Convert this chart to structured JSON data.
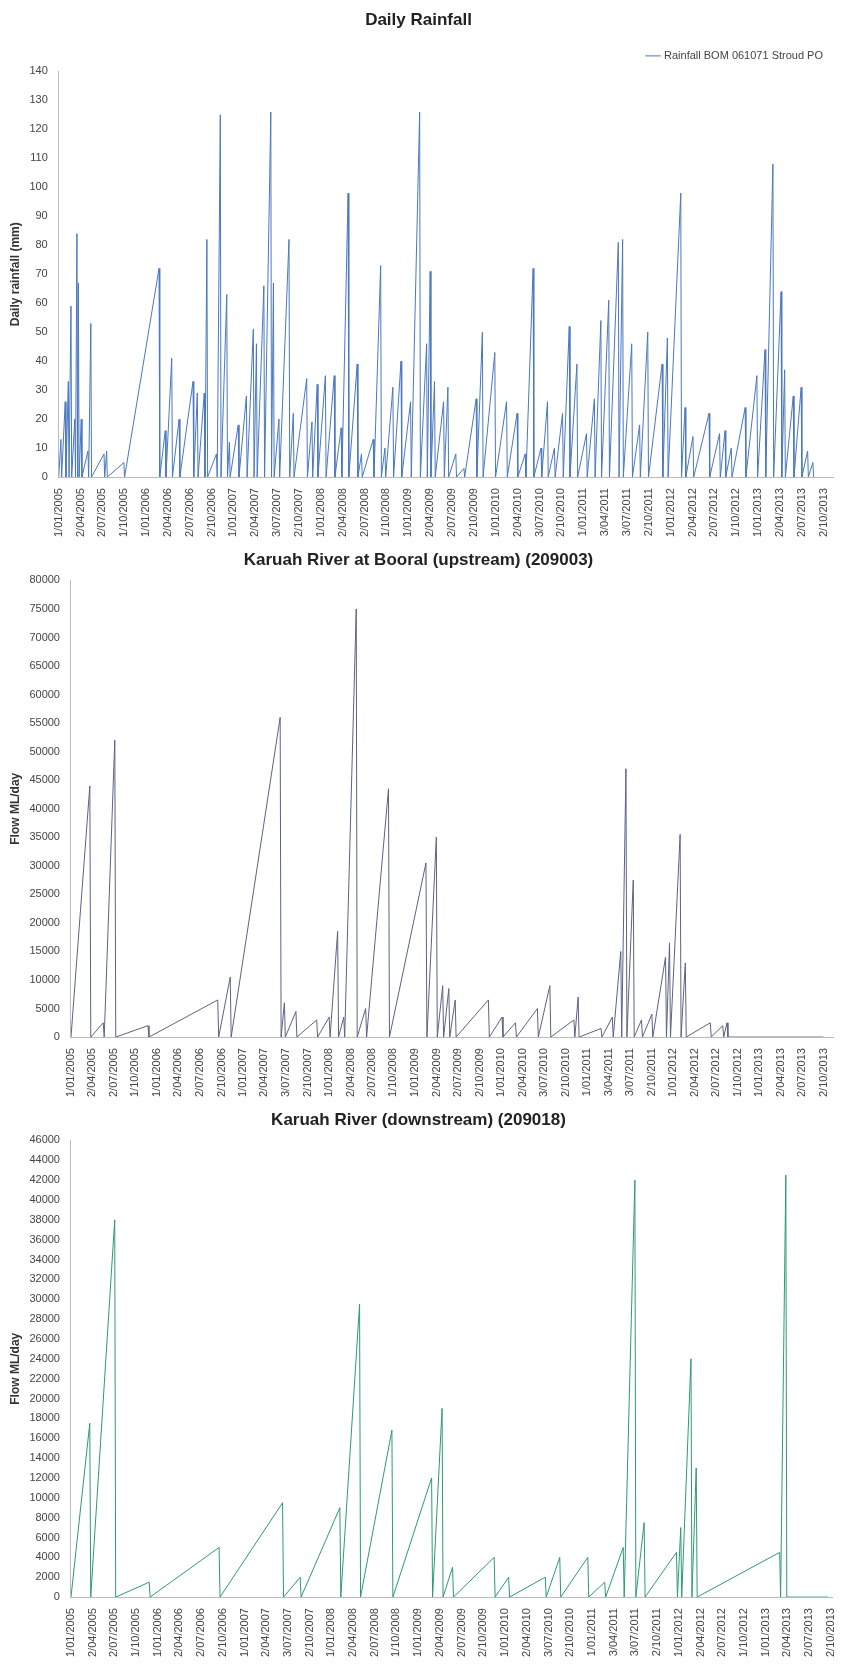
{
  "chart_data": [
    {
      "type": "line",
      "title": "Daily Rainfall",
      "ylabel": "Daily rainfall (mm)",
      "legend": "top right",
      "marker": "none",
      "xlim": [
        "2005-01-01",
        "2013-11-10"
      ],
      "xticks": [
        {
          "value": "2005-01-01",
          "label": "1/01/2005"
        },
        {
          "value": "2005-04-02",
          "label": "2/04/2005"
        },
        {
          "value": "2005-07-02",
          "label": "2/07/2005"
        },
        {
          "value": "2005-10-01",
          "label": "1/10/2005"
        },
        {
          "value": "2006-01-01",
          "label": "1/01/2006"
        },
        {
          "value": "2006-04-02",
          "label": "2/04/2006"
        },
        {
          "value": "2006-07-02",
          "label": "2/07/2006"
        },
        {
          "value": "2006-10-02",
          "label": "2/10/2006"
        },
        {
          "value": "2007-01-01",
          "label": "1/01/2007"
        },
        {
          "value": "2007-04-02",
          "label": "2/04/2007"
        },
        {
          "value": "2007-07-03",
          "label": "3/07/2007"
        },
        {
          "value": "2007-10-02",
          "label": "2/10/2007"
        },
        {
          "value": "2008-01-01",
          "label": "1/01/2008"
        },
        {
          "value": "2008-04-02",
          "label": "2/04/2008"
        },
        {
          "value": "2008-07-02",
          "label": "2/07/2008"
        },
        {
          "value": "2008-10-01",
          "label": "1/10/2008"
        },
        {
          "value": "2009-01-01",
          "label": "1/01/2009"
        },
        {
          "value": "2009-04-02",
          "label": "2/04/2009"
        },
        {
          "value": "2009-07-02",
          "label": "2/07/2009"
        },
        {
          "value": "2009-10-02",
          "label": "2/10/2009"
        },
        {
          "value": "2010-01-01",
          "label": "1/01/2010"
        },
        {
          "value": "2010-04-02",
          "label": "2/04/2010"
        },
        {
          "value": "2010-07-03",
          "label": "3/07/2010"
        },
        {
          "value": "2010-10-02",
          "label": "2/10/2010"
        },
        {
          "value": "2011-01-01",
          "label": "1/01/2011"
        },
        {
          "value": "2011-04-03",
          "label": "3/04/2011"
        },
        {
          "value": "2011-07-03",
          "label": "3/07/2011"
        },
        {
          "value": "2011-10-02",
          "label": "2/10/2011"
        },
        {
          "value": "2012-01-01",
          "label": "1/01/2012"
        },
        {
          "value": "2012-04-02",
          "label": "2/04/2012"
        },
        {
          "value": "2012-07-02",
          "label": "2/07/2012"
        },
        {
          "value": "2012-10-01",
          "label": "1/10/2012"
        },
        {
          "value": "2013-01-01",
          "label": "1/01/2013"
        },
        {
          "value": "2013-04-02",
          "label": "2/04/2013"
        },
        {
          "value": "2013-07-02",
          "label": "2/07/2013"
        },
        {
          "value": "2013-10-02",
          "label": "2/10/2013"
        }
      ],
      "ylim": [
        0,
        140
      ],
      "yticks": [
        0,
        10,
        20,
        30,
        40,
        50,
        60,
        70,
        80,
        90,
        100,
        110,
        120,
        130,
        140
      ],
      "series": [
        {
          "name": "Rainfall BOM 061071 Stroud PO",
          "color": "#4a78c0",
          "x": [
            "2005-01-01",
            "2005-01-10",
            "2005-01-13",
            "2005-01-28",
            "2005-01-31",
            "2005-02-10",
            "2005-02-13",
            "2005-02-21",
            "2005-02-24",
            "2005-03-09",
            "2005-03-12",
            "2005-03-18",
            "2005-03-21",
            "2005-03-24",
            "2005-03-27",
            "2005-04-05",
            "2005-04-08",
            "2005-05-03",
            "2005-05-06",
            "2005-05-15",
            "2005-05-18",
            "2005-07-09",
            "2005-07-12",
            "2005-07-20",
            "2005-07-23",
            "2005-09-30",
            "2005-10-03",
            "2006-02-24",
            "2006-02-27",
            "2006-03-22",
            "2006-03-25",
            "2006-04-18",
            "2006-04-21",
            "2006-05-19",
            "2006-05-22",
            "2006-07-16",
            "2006-07-19",
            "2006-08-03",
            "2006-08-06",
            "2006-09-01",
            "2006-09-04",
            "2006-09-12",
            "2006-09-15",
            "2006-10-22",
            "2006-10-25",
            "2006-11-07",
            "2006-11-10",
            "2006-12-04",
            "2006-12-07",
            "2006-12-15",
            "2006-12-18",
            "2007-01-21",
            "2007-01-24",
            "2007-02-24",
            "2007-02-27",
            "2007-03-25",
            "2007-03-28",
            "2007-04-07",
            "2007-04-10",
            "2007-05-08",
            "2007-05-11",
            "2007-06-06",
            "2007-06-09",
            "2007-06-17",
            "2007-06-20",
            "2007-07-10",
            "2007-07-13",
            "2007-08-21",
            "2007-08-24",
            "2007-09-08",
            "2007-09-11",
            "2007-11-03",
            "2007-11-06",
            "2007-11-25",
            "2007-11-28",
            "2007-12-17",
            "2007-12-20",
            "2008-01-20",
            "2008-01-23",
            "2008-02-26",
            "2008-02-29",
            "2008-03-26",
            "2008-03-29",
            "2008-04-24",
            "2008-04-27",
            "2008-06-01",
            "2008-06-04",
            "2008-06-19",
            "2008-06-22",
            "2008-08-07",
            "2008-08-10",
            "2008-09-07",
            "2008-09-10",
            "2008-09-25",
            "2008-09-28",
            "2008-10-28",
            "2008-10-31",
            "2008-12-01",
            "2008-12-04",
            "2009-01-10",
            "2009-01-13",
            "2009-02-17",
            "2009-02-20",
            "2009-03-18",
            "2009-03-21",
            "2009-04-02",
            "2009-04-05",
            "2009-04-20",
            "2009-04-23",
            "2009-05-28",
            "2009-05-31",
            "2009-06-15",
            "2009-06-18",
            "2009-07-18",
            "2009-07-21",
            "2009-08-21",
            "2009-08-24",
            "2009-10-11",
            "2009-10-14",
            "2009-11-06",
            "2009-11-09",
            "2009-12-28",
            "2009-12-31",
            "2010-02-15",
            "2010-02-18",
            "2010-03-31",
            "2010-04-03",
            "2010-05-04",
            "2010-05-07",
            "2010-06-06",
            "2010-06-09",
            "2010-07-09",
            "2010-07-12",
            "2010-08-05",
            "2010-08-08",
            "2010-09-03",
            "2010-09-06",
            "2010-10-07",
            "2010-10-10",
            "2010-11-04",
            "2010-11-07",
            "2010-12-06",
            "2010-12-09",
            "2011-01-15",
            "2011-01-18",
            "2011-02-17",
            "2011-02-20",
            "2011-03-16",
            "2011-03-19",
            "2011-04-18",
            "2011-04-21",
            "2011-05-28",
            "2011-05-31",
            "2011-06-15",
            "2011-06-18",
            "2011-07-23",
            "2011-07-26",
            "2011-08-25",
            "2011-08-28",
            "2011-09-28",
            "2011-10-01",
            "2011-11-27",
            "2011-11-30",
            "2011-12-19",
            "2011-12-22",
            "2012-02-13",
            "2012-02-16",
            "2012-03-02",
            "2012-03-05",
            "2012-04-04",
            "2012-04-07",
            "2012-06-10",
            "2012-06-13",
            "2012-07-24",
            "2012-07-27",
            "2012-08-16",
            "2012-08-19",
            "2012-09-11",
            "2012-09-14",
            "2012-11-08",
            "2012-11-11",
            "2012-12-27",
            "2012-12-30",
            "2013-01-30",
            "2013-02-02",
            "2013-03-04",
            "2013-03-07",
            "2013-04-07",
            "2013-04-10",
            "2013-04-22",
            "2013-04-25",
            "2013-05-28",
            "2013-05-31",
            "2013-06-30",
            "2013-07-03",
            "2013-07-27",
            "2013-07-30",
            "2013-08-18",
            "2013-08-21"
          ],
          "values": [
            0,
            13,
            0,
            26,
            0,
            33,
            0,
            59,
            0,
            20,
            0,
            84,
            0,
            67,
            0,
            20,
            0,
            9,
            0,
            53,
            0,
            8,
            0,
            9,
            0,
            5,
            0,
            72,
            0,
            16,
            0,
            41,
            0,
            20,
            0,
            33,
            0,
            29,
            0,
            29,
            0,
            82,
            0,
            8,
            0,
            125,
            0,
            63,
            0,
            12,
            0,
            18,
            0,
            28,
            0,
            51,
            0,
            46,
            0,
            66,
            0,
            126,
            0,
            67,
            0,
            20,
            0,
            82,
            0,
            22,
            0,
            34,
            0,
            19,
            0,
            32,
            0,
            35,
            0,
            35,
            0,
            17,
            0,
            98,
            0,
            39,
            0,
            8,
            0,
            13,
            0,
            73,
            0,
            10,
            0,
            31,
            0,
            40,
            0,
            26,
            0,
            126,
            0,
            46,
            0,
            71,
            0,
            33,
            0,
            26,
            0,
            31,
            0,
            8,
            0,
            3,
            0,
            27,
            0,
            50,
            0,
            43,
            0,
            26,
            0,
            22,
            0,
            8,
            0,
            72,
            0,
            10,
            0,
            26,
            0,
            10,
            0,
            22,
            0,
            52,
            0,
            39,
            0,
            15,
            0,
            27,
            0,
            54,
            0,
            61,
            0,
            81,
            0,
            82,
            0,
            46,
            0,
            18,
            0,
            50,
            0,
            39,
            0,
            48,
            0,
            98,
            0,
            24,
            0,
            14,
            0,
            22,
            0,
            15,
            0,
            16,
            0,
            10,
            0,
            24,
            0,
            35,
            0,
            44,
            0,
            108,
            0,
            64,
            0,
            37,
            0,
            28,
            0,
            31,
            0,
            9,
            0,
            5,
            0
          ]
        }
      ]
    },
    {
      "type": "line",
      "title": "Karuah River at Booral (upstream) (209003)",
      "ylabel": "Flow ML/day",
      "marker": "none",
      "xlim": [
        "2005-01-01",
        "2013-11-10"
      ],
      "xticks": [
        {
          "value": "2005-01-01",
          "label": "1/01/2005"
        },
        {
          "value": "2005-04-02",
          "label": "2/04/2005"
        },
        {
          "value": "2005-07-02",
          "label": "2/07/2005"
        },
        {
          "value": "2005-10-01",
          "label": "1/10/2005"
        },
        {
          "value": "2006-01-01",
          "label": "1/01/2006"
        },
        {
          "value": "2006-04-02",
          "label": "2/04/2006"
        },
        {
          "value": "2006-07-02",
          "label": "2/07/2006"
        },
        {
          "value": "2006-10-02",
          "label": "2/10/2006"
        },
        {
          "value": "2007-01-01",
          "label": "1/01/2007"
        },
        {
          "value": "2007-04-02",
          "label": "2/04/2007"
        },
        {
          "value": "2007-07-03",
          "label": "3/07/2007"
        },
        {
          "value": "2007-10-02",
          "label": "2/10/2007"
        },
        {
          "value": "2008-01-01",
          "label": "1/01/2008"
        },
        {
          "value": "2008-04-02",
          "label": "2/04/2008"
        },
        {
          "value": "2008-07-02",
          "label": "2/07/2008"
        },
        {
          "value": "2008-10-01",
          "label": "1/10/2008"
        },
        {
          "value": "2009-01-01",
          "label": "1/01/2009"
        },
        {
          "value": "2009-04-02",
          "label": "2/04/2009"
        },
        {
          "value": "2009-07-02",
          "label": "2/07/2009"
        },
        {
          "value": "2009-10-02",
          "label": "2/10/2009"
        },
        {
          "value": "2010-01-01",
          "label": "1/01/2010"
        },
        {
          "value": "2010-04-02",
          "label": "2/04/2010"
        },
        {
          "value": "2010-07-03",
          "label": "3/07/2010"
        },
        {
          "value": "2010-10-02",
          "label": "2/10/2010"
        },
        {
          "value": "2011-01-01",
          "label": "1/01/2011"
        },
        {
          "value": "2011-04-03",
          "label": "3/04/2011"
        },
        {
          "value": "2011-07-03",
          "label": "3/07/2011"
        },
        {
          "value": "2011-10-02",
          "label": "2/10/2011"
        },
        {
          "value": "2012-01-01",
          "label": "1/01/2012"
        },
        {
          "value": "2012-04-02",
          "label": "2/04/2012"
        },
        {
          "value": "2012-07-02",
          "label": "2/07/2012"
        },
        {
          "value": "2012-10-01",
          "label": "1/10/2012"
        },
        {
          "value": "2013-01-01",
          "label": "1/01/2013"
        },
        {
          "value": "2013-04-02",
          "label": "2/04/2013"
        },
        {
          "value": "2013-07-02",
          "label": "2/07/2013"
        },
        {
          "value": "2013-10-02",
          "label": "2/10/2013"
        }
      ],
      "ylim": [
        0,
        80000
      ],
      "yticks": [
        0,
        5000,
        10000,
        15000,
        20000,
        25000,
        30000,
        35000,
        40000,
        45000,
        50000,
        55000,
        60000,
        65000,
        70000,
        75000,
        80000
      ],
      "series": [
        {
          "color": "#5c6382",
          "x": [
            "2005-01-01",
            "2005-03-22",
            "2005-03-26",
            "2005-05-18",
            "2005-05-22",
            "2005-07-06",
            "2005-07-10",
            "2005-11-24",
            "2005-11-28",
            "2006-09-16",
            "2006-09-20",
            "2006-11-08",
            "2006-11-12",
            "2007-06-08",
            "2007-06-12",
            "2007-06-26",
            "2007-06-30",
            "2007-08-14",
            "2007-08-18",
            "2007-11-10",
            "2007-11-14",
            "2008-01-02",
            "2008-01-06",
            "2008-02-07",
            "2008-02-11",
            "2008-03-04",
            "2008-03-08",
            "2008-04-26",
            "2008-04-30",
            "2008-06-05",
            "2008-06-09",
            "2008-09-10",
            "2008-09-14",
            "2009-02-16",
            "2009-02-20",
            "2009-04-01",
            "2009-04-05",
            "2009-04-28",
            "2009-05-02",
            "2009-05-24",
            "2009-05-28",
            "2009-06-20",
            "2009-06-24",
            "2009-11-08",
            "2009-11-12",
            "2010-01-05",
            "2010-01-09",
            "2010-03-03",
            "2010-03-07",
            "2010-06-04",
            "2010-06-08",
            "2010-07-27",
            "2010-07-31",
            "2010-11-06",
            "2010-11-10",
            "2010-11-24",
            "2010-11-28",
            "2011-03-01",
            "2011-03-05",
            "2011-04-18",
            "2011-04-22",
            "2011-05-24",
            "2011-05-28",
            "2011-06-15",
            "2011-06-19",
            "2011-07-16",
            "2011-07-20",
            "2011-08-20",
            "2011-08-24",
            "2011-10-03",
            "2011-10-07",
            "2011-11-30",
            "2011-12-04",
            "2011-12-17",
            "2011-12-21",
            "2012-01-31",
            "2012-02-04",
            "2012-02-22",
            "2012-02-26",
            "2012-06-07",
            "2012-06-11",
            "2012-07-30",
            "2012-08-03",
            "2012-08-17",
            "2012-08-21",
            "2013-09-30"
          ],
          "values": [
            0,
            44000,
            0,
            2500,
            0,
            52000,
            0,
            2000,
            0,
            6500,
            0,
            10500,
            0,
            56000,
            0,
            6000,
            0,
            4500,
            0,
            3000,
            0,
            3500,
            0,
            18500,
            0,
            3500,
            0,
            75000,
            0,
            5000,
            0,
            43500,
            0,
            30500,
            0,
            35000,
            0,
            9000,
            0,
            8500,
            0,
            6500,
            0,
            6500,
            0,
            3500,
            0,
            2500,
            0,
            5000,
            0,
            9000,
            0,
            3000,
            0,
            7000,
            0,
            1500,
            0,
            3500,
            0,
            15000,
            0,
            47000,
            0,
            27500,
            0,
            3000,
            0,
            4000,
            0,
            14000,
            0,
            16500,
            0,
            35500,
            0,
            13000,
            0,
            2500,
            0,
            2000,
            0,
            2500,
            0,
            0
          ]
        }
      ]
    },
    {
      "type": "line",
      "title": "Karuah River (downstream) (209018)",
      "ylabel": "Flow ML/day",
      "marker": "none",
      "xlim": [
        "2005-01-01",
        "2013-10-10"
      ],
      "xticks": [
        {
          "value": "2005-01-01",
          "label": "1/01/2005"
        },
        {
          "value": "2005-04-02",
          "label": "2/04/2005"
        },
        {
          "value": "2005-07-02",
          "label": "2/07/2005"
        },
        {
          "value": "2005-10-01",
          "label": "1/10/2005"
        },
        {
          "value": "2006-01-01",
          "label": "1/01/2006"
        },
        {
          "value": "2006-04-02",
          "label": "2/04/2006"
        },
        {
          "value": "2006-07-02",
          "label": "2/07/2006"
        },
        {
          "value": "2006-10-02",
          "label": "2/10/2006"
        },
        {
          "value": "2007-01-01",
          "label": "1/01/2007"
        },
        {
          "value": "2007-04-02",
          "label": "2/04/2007"
        },
        {
          "value": "2007-07-03",
          "label": "3/07/2007"
        },
        {
          "value": "2007-10-02",
          "label": "2/10/2007"
        },
        {
          "value": "2008-01-01",
          "label": "1/01/2008"
        },
        {
          "value": "2008-04-02",
          "label": "2/04/2008"
        },
        {
          "value": "2008-07-02",
          "label": "2/07/2008"
        },
        {
          "value": "2008-10-01",
          "label": "1/10/2008"
        },
        {
          "value": "2009-01-01",
          "label": "1/01/2009"
        },
        {
          "value": "2009-04-02",
          "label": "2/04/2009"
        },
        {
          "value": "2009-07-02",
          "label": "2/07/2009"
        },
        {
          "value": "2009-10-02",
          "label": "2/10/2009"
        },
        {
          "value": "2010-01-01",
          "label": "1/01/2010"
        },
        {
          "value": "2010-04-02",
          "label": "2/04/2010"
        },
        {
          "value": "2010-07-03",
          "label": "3/07/2010"
        },
        {
          "value": "2010-10-02",
          "label": "2/10/2010"
        },
        {
          "value": "2011-01-01",
          "label": "1/01/2011"
        },
        {
          "value": "2011-04-03",
          "label": "3/04/2011"
        },
        {
          "value": "2011-07-03",
          "label": "3/07/2011"
        },
        {
          "value": "2011-10-02",
          "label": "2/10/2011"
        },
        {
          "value": "2012-01-01",
          "label": "1/01/2012"
        },
        {
          "value": "2012-04-02",
          "label": "2/04/2012"
        },
        {
          "value": "2012-07-02",
          "label": "2/07/2012"
        },
        {
          "value": "2012-10-01",
          "label": "1/10/2012"
        },
        {
          "value": "2013-01-01",
          "label": "1/01/2013"
        },
        {
          "value": "2013-04-02",
          "label": "2/04/2013"
        },
        {
          "value": "2013-07-02",
          "label": "2/07/2013"
        },
        {
          "value": "2013-10-02",
          "label": "2/10/2013"
        }
      ],
      "ylim": [
        0,
        46000
      ],
      "yticks": [
        0,
        2000,
        4000,
        6000,
        8000,
        10000,
        12000,
        14000,
        16000,
        18000,
        20000,
        22000,
        24000,
        26000,
        28000,
        30000,
        32000,
        34000,
        36000,
        38000,
        40000,
        42000,
        44000,
        46000
      ],
      "series": [
        {
          "color": "#2f9a72",
          "x": [
            "2005-01-01",
            "2005-03-21",
            "2005-03-25",
            "2005-07-04",
            "2005-07-08",
            "2005-11-26",
            "2005-11-30",
            "2006-09-16",
            "2006-09-20",
            "2007-06-10",
            "2007-06-14",
            "2007-08-23",
            "2007-08-27",
            "2008-02-06",
            "2008-02-10",
            "2008-04-29",
            "2008-05-03",
            "2008-09-12",
            "2008-09-16",
            "2009-02-26",
            "2009-03-02",
            "2009-04-11",
            "2009-04-15",
            "2009-05-25",
            "2009-05-29",
            "2009-11-16",
            "2009-11-20",
            "2010-01-16",
            "2010-01-20",
            "2010-06-19",
            "2010-06-23",
            "2010-08-19",
            "2010-08-23",
            "2010-12-15",
            "2010-12-19",
            "2011-02-24",
            "2011-02-28",
            "2011-05-13",
            "2011-05-17",
            "2011-07-01",
            "2011-07-05",
            "2011-08-09",
            "2011-08-13",
            "2011-12-23",
            "2011-12-27",
            "2012-01-10",
            "2012-01-14",
            "2012-02-22",
            "2012-02-26",
            "2012-03-15",
            "2012-03-19",
            "2013-03-01",
            "2013-03-05",
            "2013-03-27",
            "2013-03-31",
            "2013-09-20"
          ],
          "values": [
            0,
            17500,
            0,
            38000,
            0,
            1500,
            0,
            5000,
            0,
            9500,
            0,
            2000,
            0,
            9000,
            0,
            29500,
            0,
            16800,
            0,
            12000,
            0,
            19000,
            0,
            3000,
            0,
            4000,
            0,
            2000,
            0,
            2000,
            0,
            4000,
            0,
            4000,
            0,
            1500,
            0,
            5000,
            0,
            42000,
            0,
            7500,
            0,
            4500,
            0,
            7000,
            0,
            24000,
            0,
            13000,
            0,
            4500,
            0,
            42500,
            0,
            0
          ]
        }
      ]
    }
  ]
}
